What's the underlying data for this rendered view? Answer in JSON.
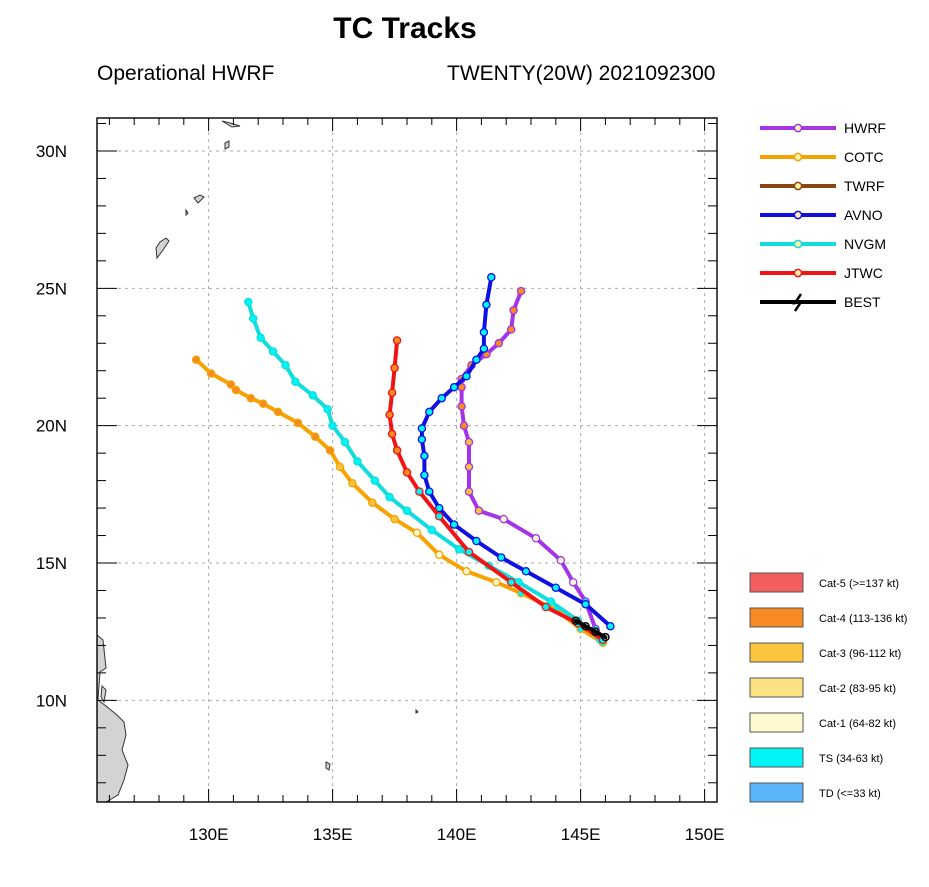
{
  "header": {
    "title": "TC Tracks",
    "left_subtitle": "Operational HWRF",
    "right_subtitle": "TWENTY(20W) 2021092300"
  },
  "chart_data": {
    "type": "line",
    "title": "TC Tracks",
    "xlabel": "",
    "ylabel": "",
    "xlim": [
      125.5,
      150.5
    ],
    "ylim": [
      6.3,
      31.2
    ],
    "grid": true,
    "x_ticks": [
      130,
      135,
      140,
      145,
      150
    ],
    "x_tick_labels": [
      "130E",
      "135E",
      "140E",
      "145E",
      "150E"
    ],
    "y_ticks": [
      10,
      15,
      20,
      25,
      30
    ],
    "y_tick_labels": [
      "10N",
      "15N",
      "20N",
      "25N",
      "30N"
    ],
    "legend_position": "right",
    "series": [
      {
        "name": "HWRF",
        "color": "#a335e6",
        "points": [
          [
            145.9,
            12.2
          ],
          [
            145.6,
            12.6
          ],
          [
            145.2,
            13.6
          ],
          [
            144.7,
            14.3
          ],
          [
            144.2,
            15.1
          ],
          [
            143.2,
            15.9
          ],
          [
            141.9,
            16.6
          ],
          [
            140.9,
            16.9
          ],
          [
            140.5,
            17.6
          ],
          [
            140.5,
            18.5
          ],
          [
            140.5,
            19.4
          ],
          [
            140.3,
            20.0
          ],
          [
            140.2,
            20.7
          ],
          [
            140.2,
            21.4
          ],
          [
            140.2,
            21.7
          ],
          [
            140.6,
            22.2
          ],
          [
            141.2,
            22.6
          ],
          [
            141.7,
            23.0
          ],
          [
            142.2,
            23.5
          ],
          [
            142.3,
            24.2
          ],
          [
            142.6,
            24.9
          ]
        ]
      },
      {
        "name": "COTC",
        "color": "#f5a300",
        "points": [
          [
            145.9,
            12.1
          ],
          [
            145.0,
            12.6
          ],
          [
            144.0,
            13.3
          ],
          [
            142.6,
            13.9
          ],
          [
            141.6,
            14.3
          ],
          [
            140.4,
            14.7
          ],
          [
            139.3,
            15.3
          ],
          [
            138.4,
            16.1
          ],
          [
            137.5,
            16.6
          ],
          [
            136.6,
            17.2
          ],
          [
            135.8,
            17.9
          ],
          [
            135.3,
            18.5
          ],
          [
            134.9,
            19.1
          ],
          [
            134.3,
            19.6
          ],
          [
            133.6,
            20.1
          ],
          [
            132.8,
            20.5
          ],
          [
            132.2,
            20.8
          ],
          [
            131.7,
            21.0
          ],
          [
            131.1,
            21.3
          ],
          [
            130.9,
            21.5
          ],
          [
            130.1,
            21.9
          ],
          [
            129.5,
            22.4
          ]
        ]
      },
      {
        "name": "TWRF",
        "color": "#8b4513",
        "points": []
      },
      {
        "name": "AVNO",
        "color": "#1010e0",
        "points": [
          [
            146.2,
            12.7
          ],
          [
            145.2,
            13.5
          ],
          [
            144.0,
            14.1
          ],
          [
            142.8,
            14.7
          ],
          [
            141.8,
            15.2
          ],
          [
            140.8,
            15.8
          ],
          [
            139.9,
            16.4
          ],
          [
            139.3,
            17.0
          ],
          [
            138.9,
            17.6
          ],
          [
            138.7,
            18.2
          ],
          [
            138.7,
            18.9
          ],
          [
            138.6,
            19.5
          ],
          [
            138.6,
            19.9
          ],
          [
            138.9,
            20.5
          ],
          [
            139.4,
            21.0
          ],
          [
            139.9,
            21.4
          ],
          [
            140.4,
            21.8
          ],
          [
            140.8,
            22.4
          ],
          [
            141.1,
            22.8
          ],
          [
            141.1,
            23.4
          ],
          [
            141.2,
            24.4
          ],
          [
            141.4,
            25.4
          ]
        ]
      },
      {
        "name": "NVGM",
        "color": "#12dcdc",
        "points": [
          [
            145.8,
            12.2
          ],
          [
            144.9,
            12.9
          ],
          [
            143.8,
            13.6
          ],
          [
            142.5,
            14.3
          ],
          [
            141.3,
            14.9
          ],
          [
            140.1,
            15.5
          ],
          [
            139.0,
            16.2
          ],
          [
            138.0,
            16.9
          ],
          [
            137.3,
            17.4
          ],
          [
            136.7,
            18.0
          ],
          [
            136.0,
            18.7
          ],
          [
            135.5,
            19.4
          ],
          [
            135.0,
            20.0
          ],
          [
            134.8,
            20.6
          ],
          [
            134.2,
            21.1
          ],
          [
            133.5,
            21.6
          ],
          [
            133.1,
            22.2
          ],
          [
            132.6,
            22.7
          ],
          [
            132.1,
            23.2
          ],
          [
            131.8,
            23.9
          ],
          [
            131.6,
            24.5
          ]
        ]
      },
      {
        "name": "JTWC",
        "color": "#f01414",
        "points": [
          [
            145.9,
            12.2
          ],
          [
            144.9,
            12.8
          ],
          [
            143.6,
            13.4
          ],
          [
            142.2,
            14.3
          ],
          [
            140.5,
            15.4
          ],
          [
            139.3,
            16.7
          ],
          [
            138.5,
            17.6
          ],
          [
            138.0,
            18.3
          ],
          [
            137.6,
            19.1
          ],
          [
            137.4,
            19.7
          ],
          [
            137.3,
            20.4
          ],
          [
            137.4,
            21.2
          ],
          [
            137.5,
            22.1
          ],
          [
            137.6,
            23.1
          ]
        ]
      },
      {
        "name": "BEST",
        "color": "#000000",
        "points": [
          [
            146.0,
            12.3
          ],
          [
            145.6,
            12.5
          ],
          [
            145.2,
            12.7
          ],
          [
            144.8,
            12.9
          ]
        ]
      }
    ],
    "intensity_legend": [
      {
        "label": "Cat-5 (>=137 kt)",
        "color": "#f45d5d"
      },
      {
        "label": "Cat-4 (113-136 kt)",
        "color": "#f58b22"
      },
      {
        "label": "Cat-3 (96-112 kt)",
        "color": "#fbc43e"
      },
      {
        "label": "Cat-2 (83-95 kt)",
        "color": "#fbe383"
      },
      {
        "label": "Cat-1 (64-82 kt)",
        "color": "#fefad0"
      },
      {
        "label": "TS (34-63 kt)",
        "color": "#00f5f5"
      },
      {
        "label": "TD (<=33 kt)",
        "color": "#5ab4fa"
      }
    ]
  }
}
